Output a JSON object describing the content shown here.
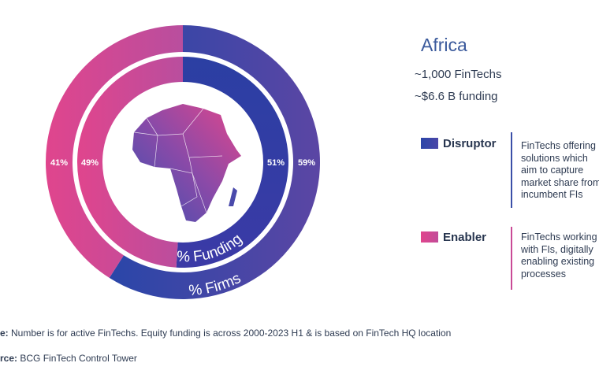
{
  "chart_data": {
    "type": "donut",
    "region": "Africa",
    "stats": [
      "~1,000 FinTechs",
      "~$6.6 B funding"
    ],
    "rings": [
      {
        "name": "% Firms",
        "segments": [
          {
            "category": "Disruptor",
            "value": 59,
            "label": "59%"
          },
          {
            "category": "Enabler",
            "value": 41,
            "label": "41%"
          }
        ]
      },
      {
        "name": "% Funding",
        "segments": [
          {
            "category": "Disruptor",
            "value": 51,
            "label": "51%"
          },
          {
            "category": "Enabler",
            "value": 49,
            "label": "49%"
          }
        ]
      }
    ],
    "legend": [
      {
        "label": "Disruptor",
        "color": "#2f49a6",
        "description": [
          "FinTechs offering",
          "solutions which",
          "aim to capture",
          "market share from",
          "incumbent FIs"
        ]
      },
      {
        "label": "Enabler",
        "color": "#d6458f",
        "description": [
          "FinTechs working",
          "with FIs, digitally",
          "enabling existing",
          "processes"
        ]
      }
    ]
  },
  "colors": {
    "disruptor": "#2f49a6",
    "enabler": "#d6458f",
    "accent_text": "#3b5a9c"
  },
  "footnotes": {
    "note_prefix": "e:",
    "note_text": "Number is for active FinTechs. Equity funding is across 2000-2023 H1 & is based on FinTech HQ location",
    "source_prefix": "rce:",
    "source_text": "BCG FinTech Control Tower"
  }
}
